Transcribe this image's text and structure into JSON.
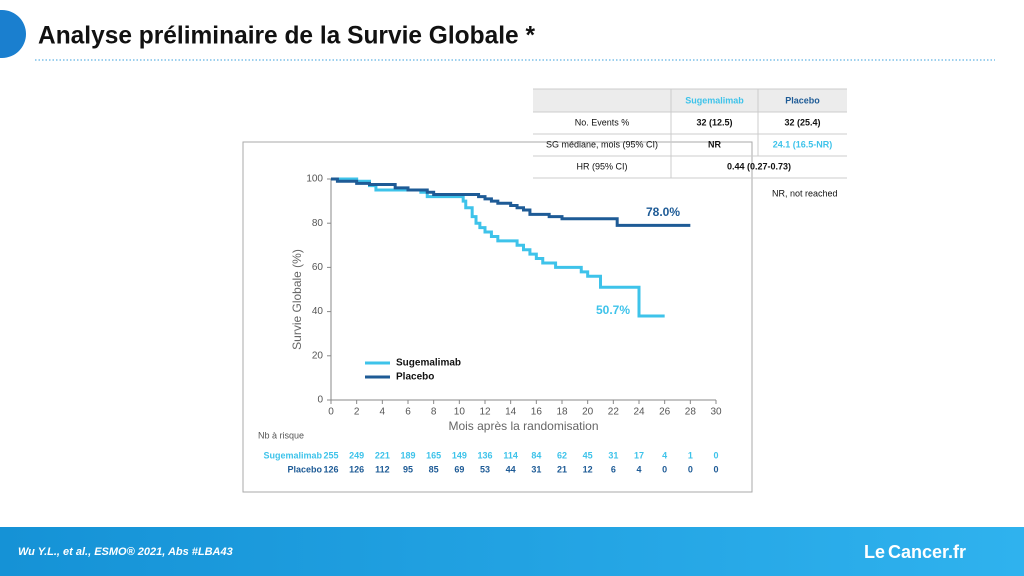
{
  "slide": {
    "title": "Analyse préliminaire de la Survie Globale *",
    "footer": "Wu Y.L., et al., ESMO® 2021, Abs #LBA43",
    "logo": [
      "Le",
      "Cancer.fr"
    ],
    "table": {
      "header": [
        "Sugemalimab",
        "Placebo"
      ],
      "rows": [
        [
          "No. Events %",
          "32 (12.5)",
          "32 (25.4)"
        ],
        [
          "SG médiane, mois (95% CI)",
          "NR",
          "24.1 (16.5-NR)"
        ],
        [
          "HR (95% CI)",
          "0.44 (0.27-0.73)"
        ]
      ],
      "note": "NR, not reached"
    }
  },
  "chart_data": {
    "type": "step",
    "x_label": "Mois après la randomisation",
    "y_label": "Survie Globale (%)",
    "xlim": [
      0,
      30
    ],
    "xticks": [
      0,
      2,
      4,
      6,
      8,
      10,
      12,
      14,
      16,
      18,
      20,
      22,
      24,
      26,
      28,
      30
    ],
    "ylim": [
      0,
      100
    ],
    "yticks": [
      0,
      20,
      40,
      60,
      80,
      100
    ],
    "series": [
      {
        "name": "Sugemalimab",
        "color": "#3ec3ea",
        "x": [
          0,
          1,
          2,
          3,
          3.5,
          6,
          7,
          7.5,
          10,
          10.3,
          10.5,
          11,
          11.3,
          11.6,
          12,
          12.5,
          13,
          14.5,
          15,
          15.5,
          16,
          16.5,
          17.5,
          19.5,
          20,
          21,
          24,
          26
        ],
        "values": [
          100,
          100,
          99,
          97,
          95,
          95,
          94,
          92,
          92,
          90,
          87,
          83,
          80,
          78,
          76,
          74,
          72,
          70,
          68,
          66,
          64,
          62,
          60,
          58,
          56,
          51,
          38,
          38
        ]
      },
      {
        "name": "Placebo",
        "color": "#1e5b96",
        "x": [
          0,
          0.5,
          2,
          3,
          5,
          6,
          7.5,
          8,
          11.5,
          12,
          12.5,
          13,
          14,
          14.5,
          15,
          15.5,
          17,
          18,
          22.3,
          28
        ],
        "values": [
          100,
          99,
          98,
          97.5,
          96,
          95,
          94,
          93,
          92,
          91,
          90,
          89,
          88,
          87,
          86,
          84,
          83,
          82,
          79,
          79
        ]
      }
    ],
    "annotations": [
      "78.0%",
      "50.7%"
    ],
    "risk_table": {
      "title": "Nb à risque",
      "rows": [
        {
          "name": "Sugemalimab",
          "values": [
            255,
            249,
            221,
            189,
            165,
            149,
            136,
            114,
            84,
            62,
            45,
            31,
            17,
            4,
            1,
            0
          ]
        },
        {
          "name": "Placebo",
          "values": [
            126,
            126,
            112,
            95,
            85,
            69,
            53,
            44,
            31,
            21,
            12,
            6,
            4,
            0,
            0,
            0
          ]
        }
      ]
    }
  }
}
